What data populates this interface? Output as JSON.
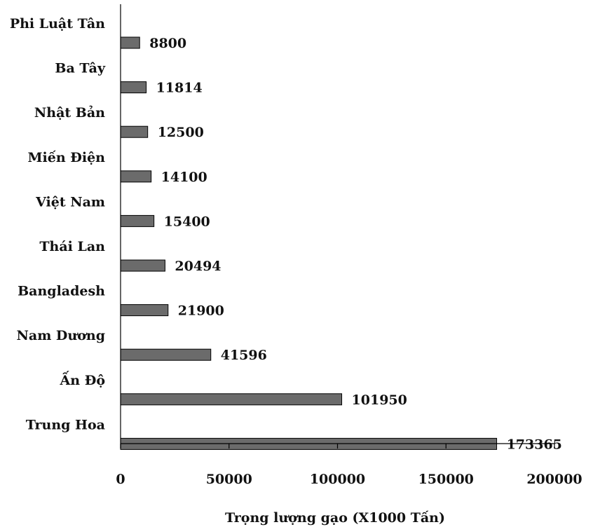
{
  "chart_data": {
    "type": "bar",
    "orientation": "horizontal",
    "categories": [
      "Phi Luật Tân",
      "Ba Tây",
      "Nhật Bản",
      "Miến Điện",
      "Việt Nam",
      "Thái Lan",
      "Bangladesh",
      "Nam Dương",
      "Ấn Độ",
      "Trung Hoa"
    ],
    "values": [
      8800,
      11814,
      12500,
      14100,
      15400,
      20494,
      21900,
      41596,
      101950,
      173365
    ],
    "value_labels": [
      "8800",
      "11814",
      "12500",
      "14100",
      "15400",
      "20494",
      "21900",
      "41596",
      "101950",
      "173365"
    ],
    "xlabel": "Trọng lượng gạo (X1000 Tấn)",
    "xlim": [
      0,
      200000
    ],
    "xticks": [
      0,
      50000,
      100000,
      150000,
      200000
    ],
    "xtick_labels": [
      "0",
      "50000",
      "100000",
      "150000",
      "200000"
    ],
    "bar_color": "#6b6b6b",
    "grid": false,
    "legend": "none"
  }
}
